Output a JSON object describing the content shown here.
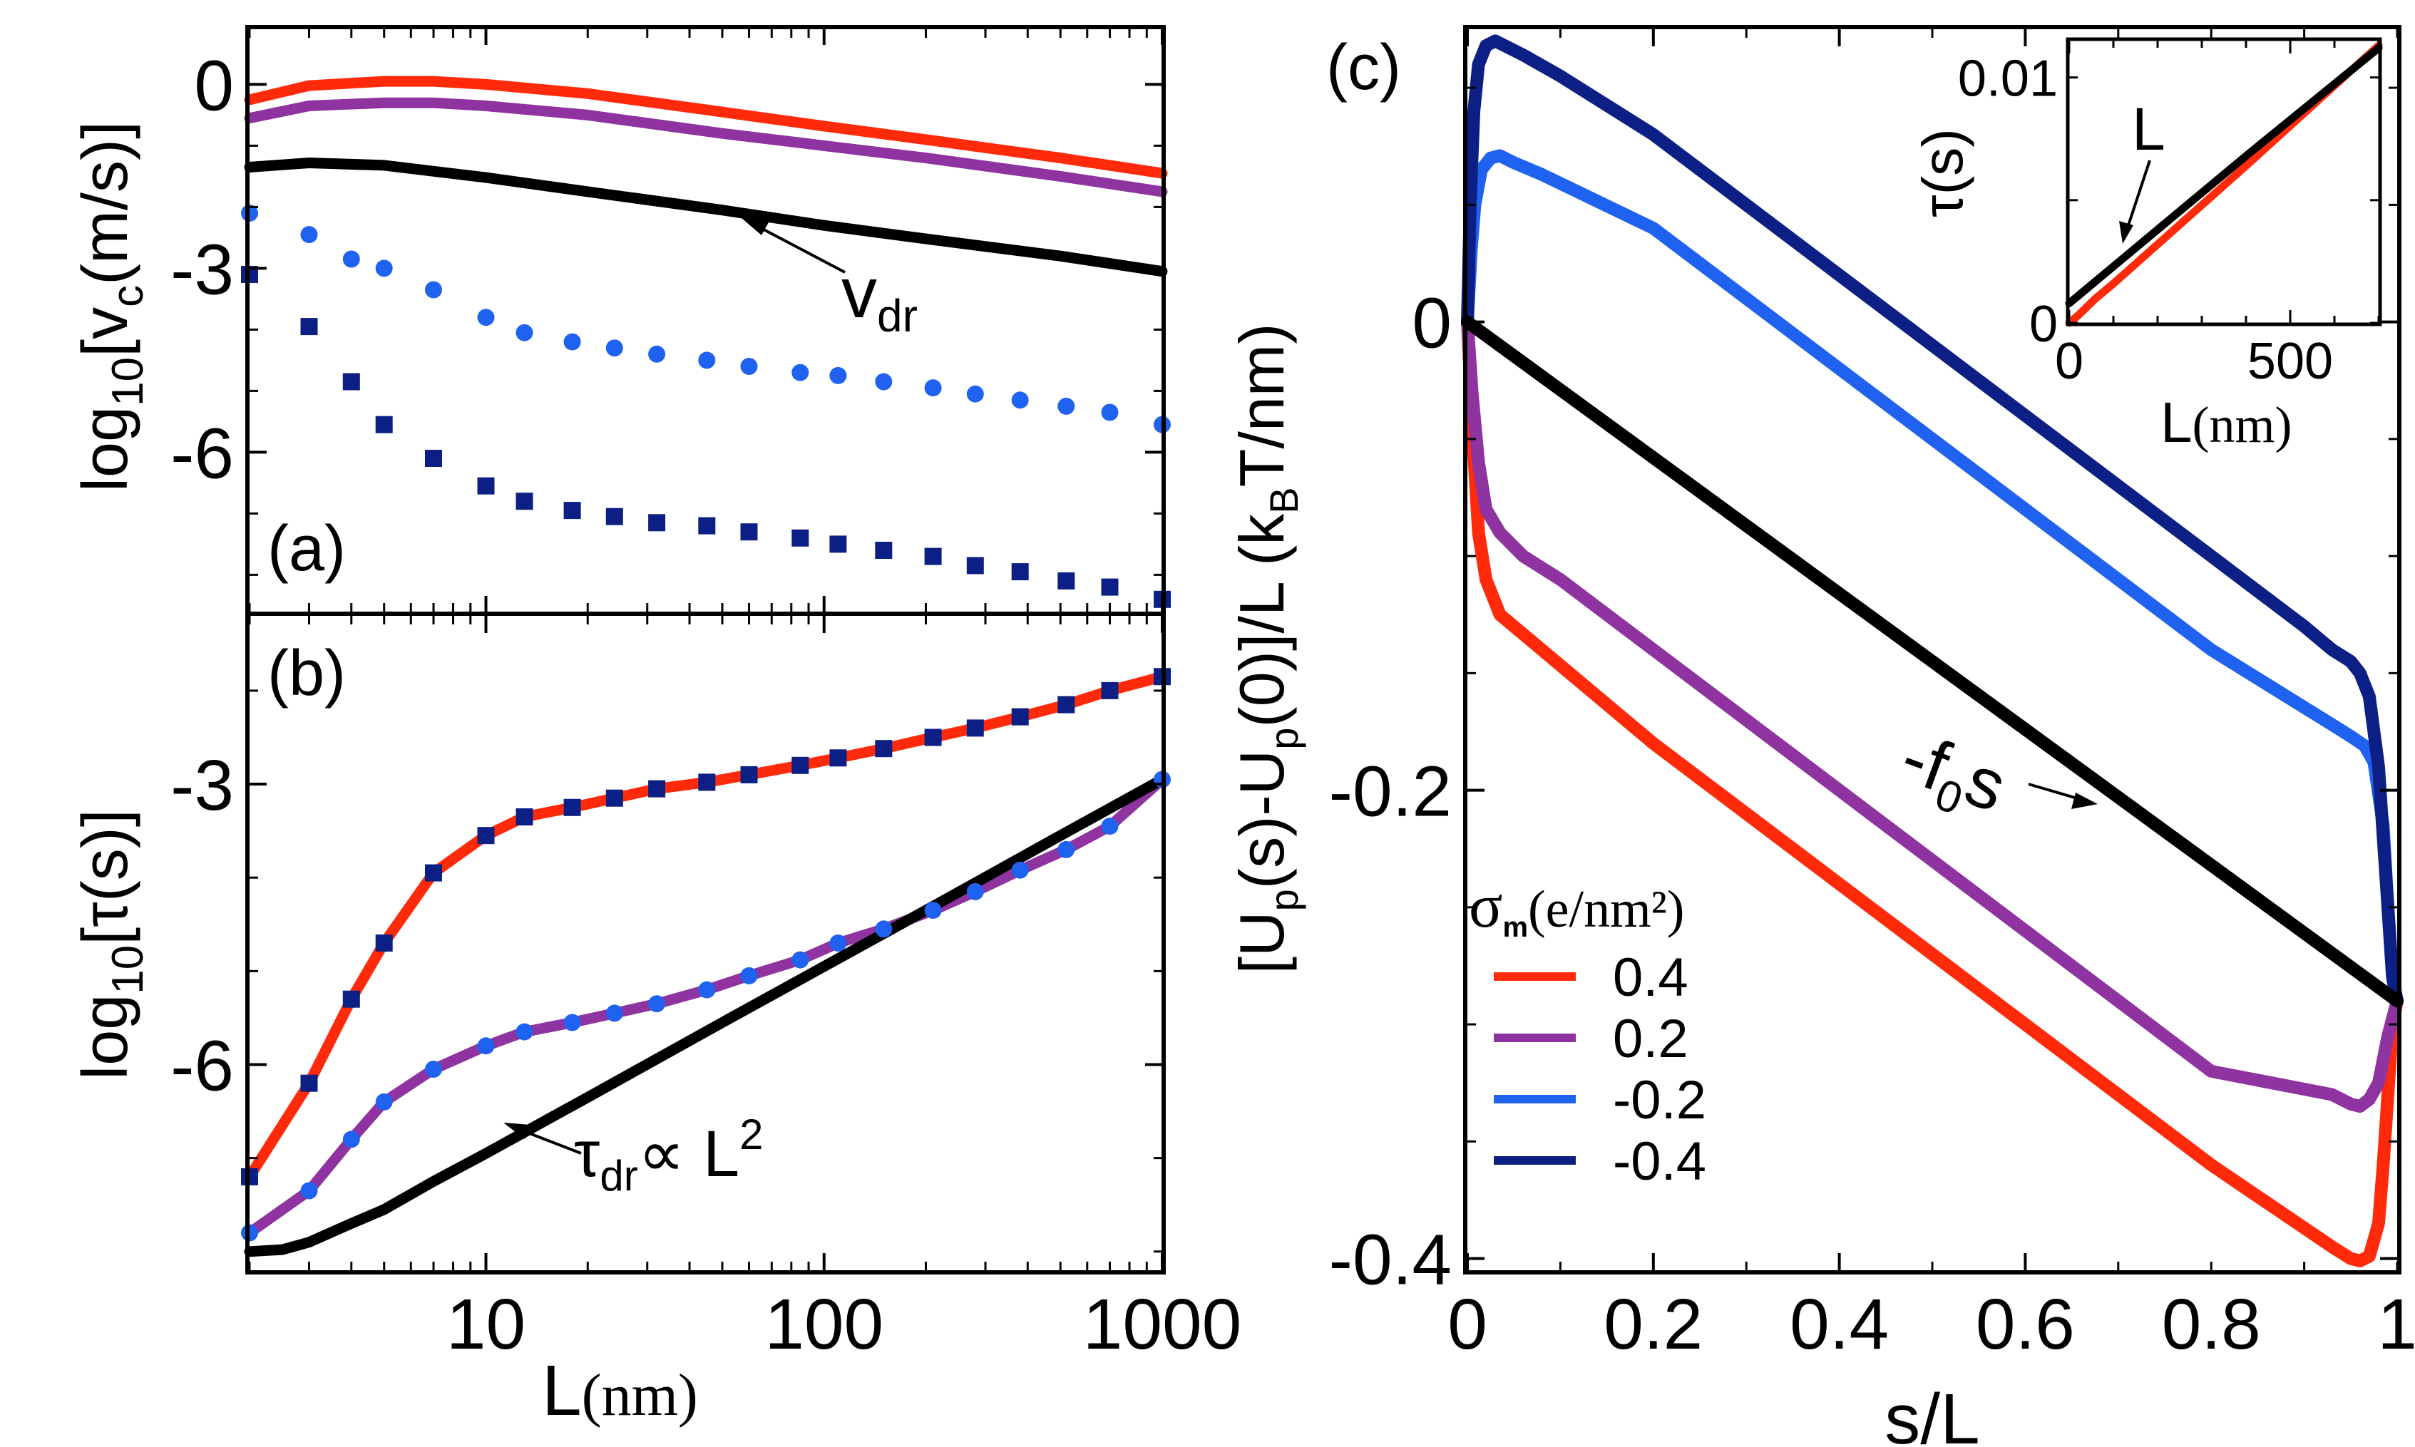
{
  "colors": {
    "red": "#ff2a0a",
    "purple": "#8e33a0",
    "blue": "#1f62f0",
    "navy": "#0c1f84",
    "black": "#000000"
  },
  "chart_data": [
    {
      "panel_label": "(a)",
      "type": "line",
      "xscale": "log",
      "xlim": [
        2,
        1000
      ],
      "ylim": [
        -8.6,
        0.9
      ],
      "yticks": [
        0,
        -3,
        -6
      ],
      "ytick_labels": [
        "0",
        "-3",
        "-6"
      ],
      "ylabel": {
        "pre": "log",
        "sub": "10",
        "mid": "[v",
        "sub2": "c",
        "post": "(m/s)]"
      },
      "annotation": {
        "text": "v",
        "sub": "dr"
      },
      "series": [
        {
          "name": "sigma_m = 0.4",
          "style": "line",
          "color_key": "red",
          "x": [
            2,
            3,
            5,
            7,
            10,
            20,
            50,
            100,
            200,
            500,
            1000
          ],
          "values": [
            -0.25,
            -0.02,
            0.05,
            0.05,
            0.0,
            -0.15,
            -0.45,
            -0.68,
            -0.9,
            -1.2,
            -1.45
          ]
        },
        {
          "name": "sigma_m = 0.2",
          "style": "line",
          "color_key": "purple",
          "x": [
            2,
            3,
            5,
            7,
            10,
            20,
            50,
            100,
            200,
            500,
            1000
          ],
          "values": [
            -0.55,
            -0.35,
            -0.3,
            -0.3,
            -0.35,
            -0.5,
            -0.8,
            -1.0,
            -1.2,
            -1.5,
            -1.75
          ]
        },
        {
          "name": "v_dr",
          "style": "line",
          "color_key": "black",
          "x": [
            2,
            3,
            5,
            10,
            20,
            50,
            100,
            200,
            500,
            1000
          ],
          "values": [
            -1.35,
            -1.28,
            -1.32,
            -1.52,
            -1.75,
            -2.05,
            -2.3,
            -2.52,
            -2.8,
            -3.05
          ]
        },
        {
          "name": "circles",
          "style": "circle",
          "color_key": "blue",
          "x": [
            2,
            3,
            4,
            5,
            7,
            10,
            13,
            18,
            24,
            32,
            45,
            60,
            85,
            110,
            150,
            210,
            280,
            380,
            520,
            700,
            1000
          ],
          "values": [
            -2.1,
            -2.45,
            -2.85,
            -3.0,
            -3.35,
            -3.8,
            -4.05,
            -4.2,
            -4.3,
            -4.4,
            -4.5,
            -4.6,
            -4.7,
            -4.75,
            -4.85,
            -4.95,
            -5.05,
            -5.15,
            -5.25,
            -5.35,
            -5.55
          ]
        },
        {
          "name": "squares",
          "style": "square",
          "color_key": "navy",
          "x": [
            2,
            3,
            4,
            5,
            7,
            10,
            13,
            18,
            24,
            32,
            45,
            60,
            85,
            110,
            150,
            210,
            280,
            380,
            520,
            700,
            1000
          ],
          "values": [
            -3.1,
            -3.95,
            -4.85,
            -5.55,
            -6.1,
            -6.55,
            -6.8,
            -6.95,
            -7.05,
            -7.15,
            -7.2,
            -7.3,
            -7.4,
            -7.5,
            -7.6,
            -7.7,
            -7.85,
            -7.95,
            -8.1,
            -8.2,
            -8.4
          ]
        }
      ]
    },
    {
      "panel_label": "(b)",
      "type": "line",
      "xscale": "log",
      "xlim": [
        2,
        1000
      ],
      "ylim": [
        -8.2,
        -1.2
      ],
      "xticks": [
        10,
        100,
        1000
      ],
      "xtick_labels": [
        "10",
        "100",
        "1000"
      ],
      "xlabel": {
        "main": "L",
        "unit": "(nm)"
      },
      "yticks": [
        -3,
        -6
      ],
      "ytick_labels": [
        "-3",
        "-6"
      ],
      "ylabel": {
        "pre": "log",
        "sub": "10",
        "post": "[τ(s)]"
      },
      "annotation": {
        "text": "τ",
        "sub": "dr",
        "post": "∝ L",
        "sup": "2"
      },
      "series": [
        {
          "name": "sigma_m = 0.4",
          "style": "line",
          "color_key": "red",
          "x": [
            2,
            3,
            4,
            5,
            7,
            10,
            13,
            18,
            24,
            32,
            45,
            60,
            85,
            110,
            150,
            210,
            280,
            380,
            520,
            700,
            1000
          ],
          "values": [
            -7.2,
            -6.2,
            -5.3,
            -4.7,
            -3.95,
            -3.55,
            -3.35,
            -3.25,
            -3.15,
            -3.05,
            -2.98,
            -2.9,
            -2.8,
            -2.72,
            -2.62,
            -2.5,
            -2.4,
            -2.28,
            -2.15,
            -2.0,
            -1.85
          ]
        },
        {
          "name": "sigma_m = 0.2",
          "style": "line",
          "color_key": "purple",
          "x": [
            2,
            3,
            4,
            5,
            7,
            10,
            13,
            18,
            24,
            32,
            45,
            60,
            85,
            110,
            150,
            210,
            280,
            380,
            520,
            700,
            1000
          ],
          "values": [
            -7.8,
            -7.35,
            -6.8,
            -6.4,
            -6.05,
            -5.8,
            -5.65,
            -5.55,
            -5.45,
            -5.35,
            -5.2,
            -5.05,
            -4.88,
            -4.7,
            -4.55,
            -4.35,
            -4.15,
            -3.92,
            -3.7,
            -3.45,
            -2.95
          ]
        },
        {
          "name": "tau_dr",
          "style": "line",
          "color_key": "black",
          "x": [
            2,
            2.5,
            3,
            4,
            5,
            7,
            10,
            20,
            50,
            100,
            200,
            500,
            1000
          ],
          "values": [
            -8.0,
            -7.98,
            -7.9,
            -7.7,
            -7.55,
            -7.25,
            -6.95,
            -6.35,
            -5.55,
            -4.95,
            -4.35,
            -3.55,
            -2.95
          ]
        },
        {
          "name": "circles",
          "style": "circle",
          "color_key": "blue",
          "x": [
            2,
            3,
            4,
            5,
            7,
            10,
            13,
            18,
            24,
            32,
            45,
            60,
            85,
            110,
            150,
            210,
            280,
            380,
            520,
            700,
            1000
          ],
          "values": [
            -7.8,
            -7.35,
            -6.8,
            -6.4,
            -6.05,
            -5.8,
            -5.65,
            -5.55,
            -5.45,
            -5.35,
            -5.2,
            -5.05,
            -4.88,
            -4.7,
            -4.55,
            -4.35,
            -4.15,
            -3.92,
            -3.7,
            -3.45,
            -2.95
          ]
        },
        {
          "name": "squares",
          "style": "square",
          "color_key": "navy",
          "x": [
            2,
            3,
            4,
            5,
            7,
            10,
            13,
            18,
            24,
            32,
            45,
            60,
            85,
            110,
            150,
            210,
            280,
            380,
            520,
            700,
            1000
          ],
          "values": [
            -7.2,
            -6.2,
            -5.3,
            -4.7,
            -3.95,
            -3.55,
            -3.35,
            -3.25,
            -3.15,
            -3.05,
            -2.98,
            -2.9,
            -2.8,
            -2.72,
            -2.62,
            -2.5,
            -2.4,
            -2.28,
            -2.15,
            -2.0,
            -1.85
          ]
        }
      ]
    },
    {
      "panel_label": "(c)",
      "type": "line",
      "xlim": [
        0,
        1
      ],
      "ylim": [
        -0.405,
        0.125
      ],
      "xticks": [
        0,
        0.2,
        0.4,
        0.6,
        0.8,
        1
      ],
      "xtick_labels": [
        "0",
        "0.2",
        "0.4",
        "0.6",
        "0.8",
        "1"
      ],
      "xlabel": "s/L",
      "yticks": [
        0,
        -0.2,
        -0.4
      ],
      "ytick_labels": [
        "0",
        "-0.2",
        "-0.4"
      ],
      "ylabel": "[U_p(s)-U_p(0)]/L (k_B T/nm)",
      "annotation": {
        "pre": "-f",
        "sub": "0",
        "post": "s"
      },
      "legend": {
        "title_symbol": "σ",
        "title_sub": "m",
        "title_unit": "(e/nm²)",
        "placement": "bottom-left",
        "entries": [
          {
            "label": "0.4",
            "color_key": "red"
          },
          {
            "label": "0.2",
            "color_key": "purple"
          },
          {
            "label": "-0.2",
            "color_key": "blue"
          },
          {
            "label": "-0.4",
            "color_key": "navy"
          }
        ]
      },
      "series": [
        {
          "name": "0.4",
          "color_key": "red",
          "x": [
            0,
            0.006,
            0.012,
            0.02,
            0.035,
            0.05,
            0.08,
            0.2,
            0.4,
            0.6,
            0.8,
            0.93,
            0.95,
            0.96,
            0.97,
            0.98,
            0.985,
            0.99,
            0.995,
            1
          ],
          "values": [
            0,
            -0.05,
            -0.09,
            -0.11,
            -0.125,
            -0.13,
            -0.14,
            -0.18,
            -0.24,
            -0.3,
            -0.36,
            -0.395,
            -0.4,
            -0.401,
            -0.399,
            -0.385,
            -0.36,
            -0.33,
            -0.3,
            -0.29
          ]
        },
        {
          "name": "0.2",
          "color_key": "purple",
          "x": [
            0,
            0.005,
            0.012,
            0.02,
            0.035,
            0.06,
            0.1,
            0.2,
            0.4,
            0.6,
            0.8,
            0.93,
            0.95,
            0.96,
            0.97,
            0.98,
            0.99,
            1
          ],
          "values": [
            0,
            -0.03,
            -0.06,
            -0.08,
            -0.09,
            -0.1,
            -0.11,
            -0.14,
            -0.2,
            -0.26,
            -0.32,
            -0.33,
            -0.334,
            -0.335,
            -0.332,
            -0.325,
            -0.305,
            -0.29
          ]
        },
        {
          "name": "-0.2",
          "color_key": "blue",
          "x": [
            0,
            0.004,
            0.008,
            0.015,
            0.025,
            0.035,
            0.05,
            0.08,
            0.2,
            0.4,
            0.6,
            0.8,
            0.93,
            0.95,
            0.965,
            0.975,
            0.985,
            0.99,
            0.995,
            1
          ],
          "values": [
            0,
            0.03,
            0.05,
            0.065,
            0.07,
            0.071,
            0.068,
            0.063,
            0.04,
            -0.02,
            -0.08,
            -0.14,
            -0.172,
            -0.177,
            -0.181,
            -0.188,
            -0.215,
            -0.25,
            -0.28,
            -0.29
          ]
        },
        {
          "name": "-0.4",
          "color_key": "navy",
          "x": [
            0,
            0.003,
            0.007,
            0.012,
            0.02,
            0.03,
            0.04,
            0.06,
            0.1,
            0.2,
            0.4,
            0.6,
            0.8,
            0.9,
            0.93,
            0.95,
            0.96,
            0.97,
            0.98,
            0.985,
            0.99,
            0.995,
            1
          ],
          "values": [
            0,
            0.05,
            0.09,
            0.11,
            0.118,
            0.12,
            0.118,
            0.114,
            0.105,
            0.08,
            0.02,
            -0.04,
            -0.1,
            -0.13,
            -0.14,
            -0.145,
            -0.15,
            -0.16,
            -0.19,
            -0.22,
            -0.25,
            -0.28,
            -0.29
          ]
        },
        {
          "name": "-f0 s",
          "color_key": "black",
          "x": [
            0,
            1
          ],
          "values": [
            0,
            -0.29
          ]
        }
      ]
    },
    {
      "panel_label": "inset",
      "type": "line",
      "xlim": [
        0,
        700
      ],
      "ylim": [
        0,
        0.0115
      ],
      "xticks": [
        0,
        500
      ],
      "xtick_labels": [
        "0",
        "500"
      ],
      "yticks": [
        0,
        0.01
      ],
      "ytick_labels": [
        "0",
        "0.01"
      ],
      "xlabel": {
        "main": "L",
        "unit": "(nm)"
      },
      "ylabel": "τ(s)",
      "annotation": "L",
      "series": [
        {
          "name": "red",
          "color_key": "red",
          "x": [
            0,
            20,
            40,
            60,
            100,
            200,
            400,
            700
          ],
          "values": [
            0,
            0.0003,
            0.00065,
            0.001,
            0.0016,
            0.0032,
            0.0064,
            0.0113
          ]
        },
        {
          "name": "black",
          "color_key": "black",
          "x": [
            0,
            100,
            200,
            400,
            700
          ],
          "values": [
            0.0008,
            0.0023,
            0.0038,
            0.0068,
            0.0112
          ]
        }
      ]
    }
  ]
}
